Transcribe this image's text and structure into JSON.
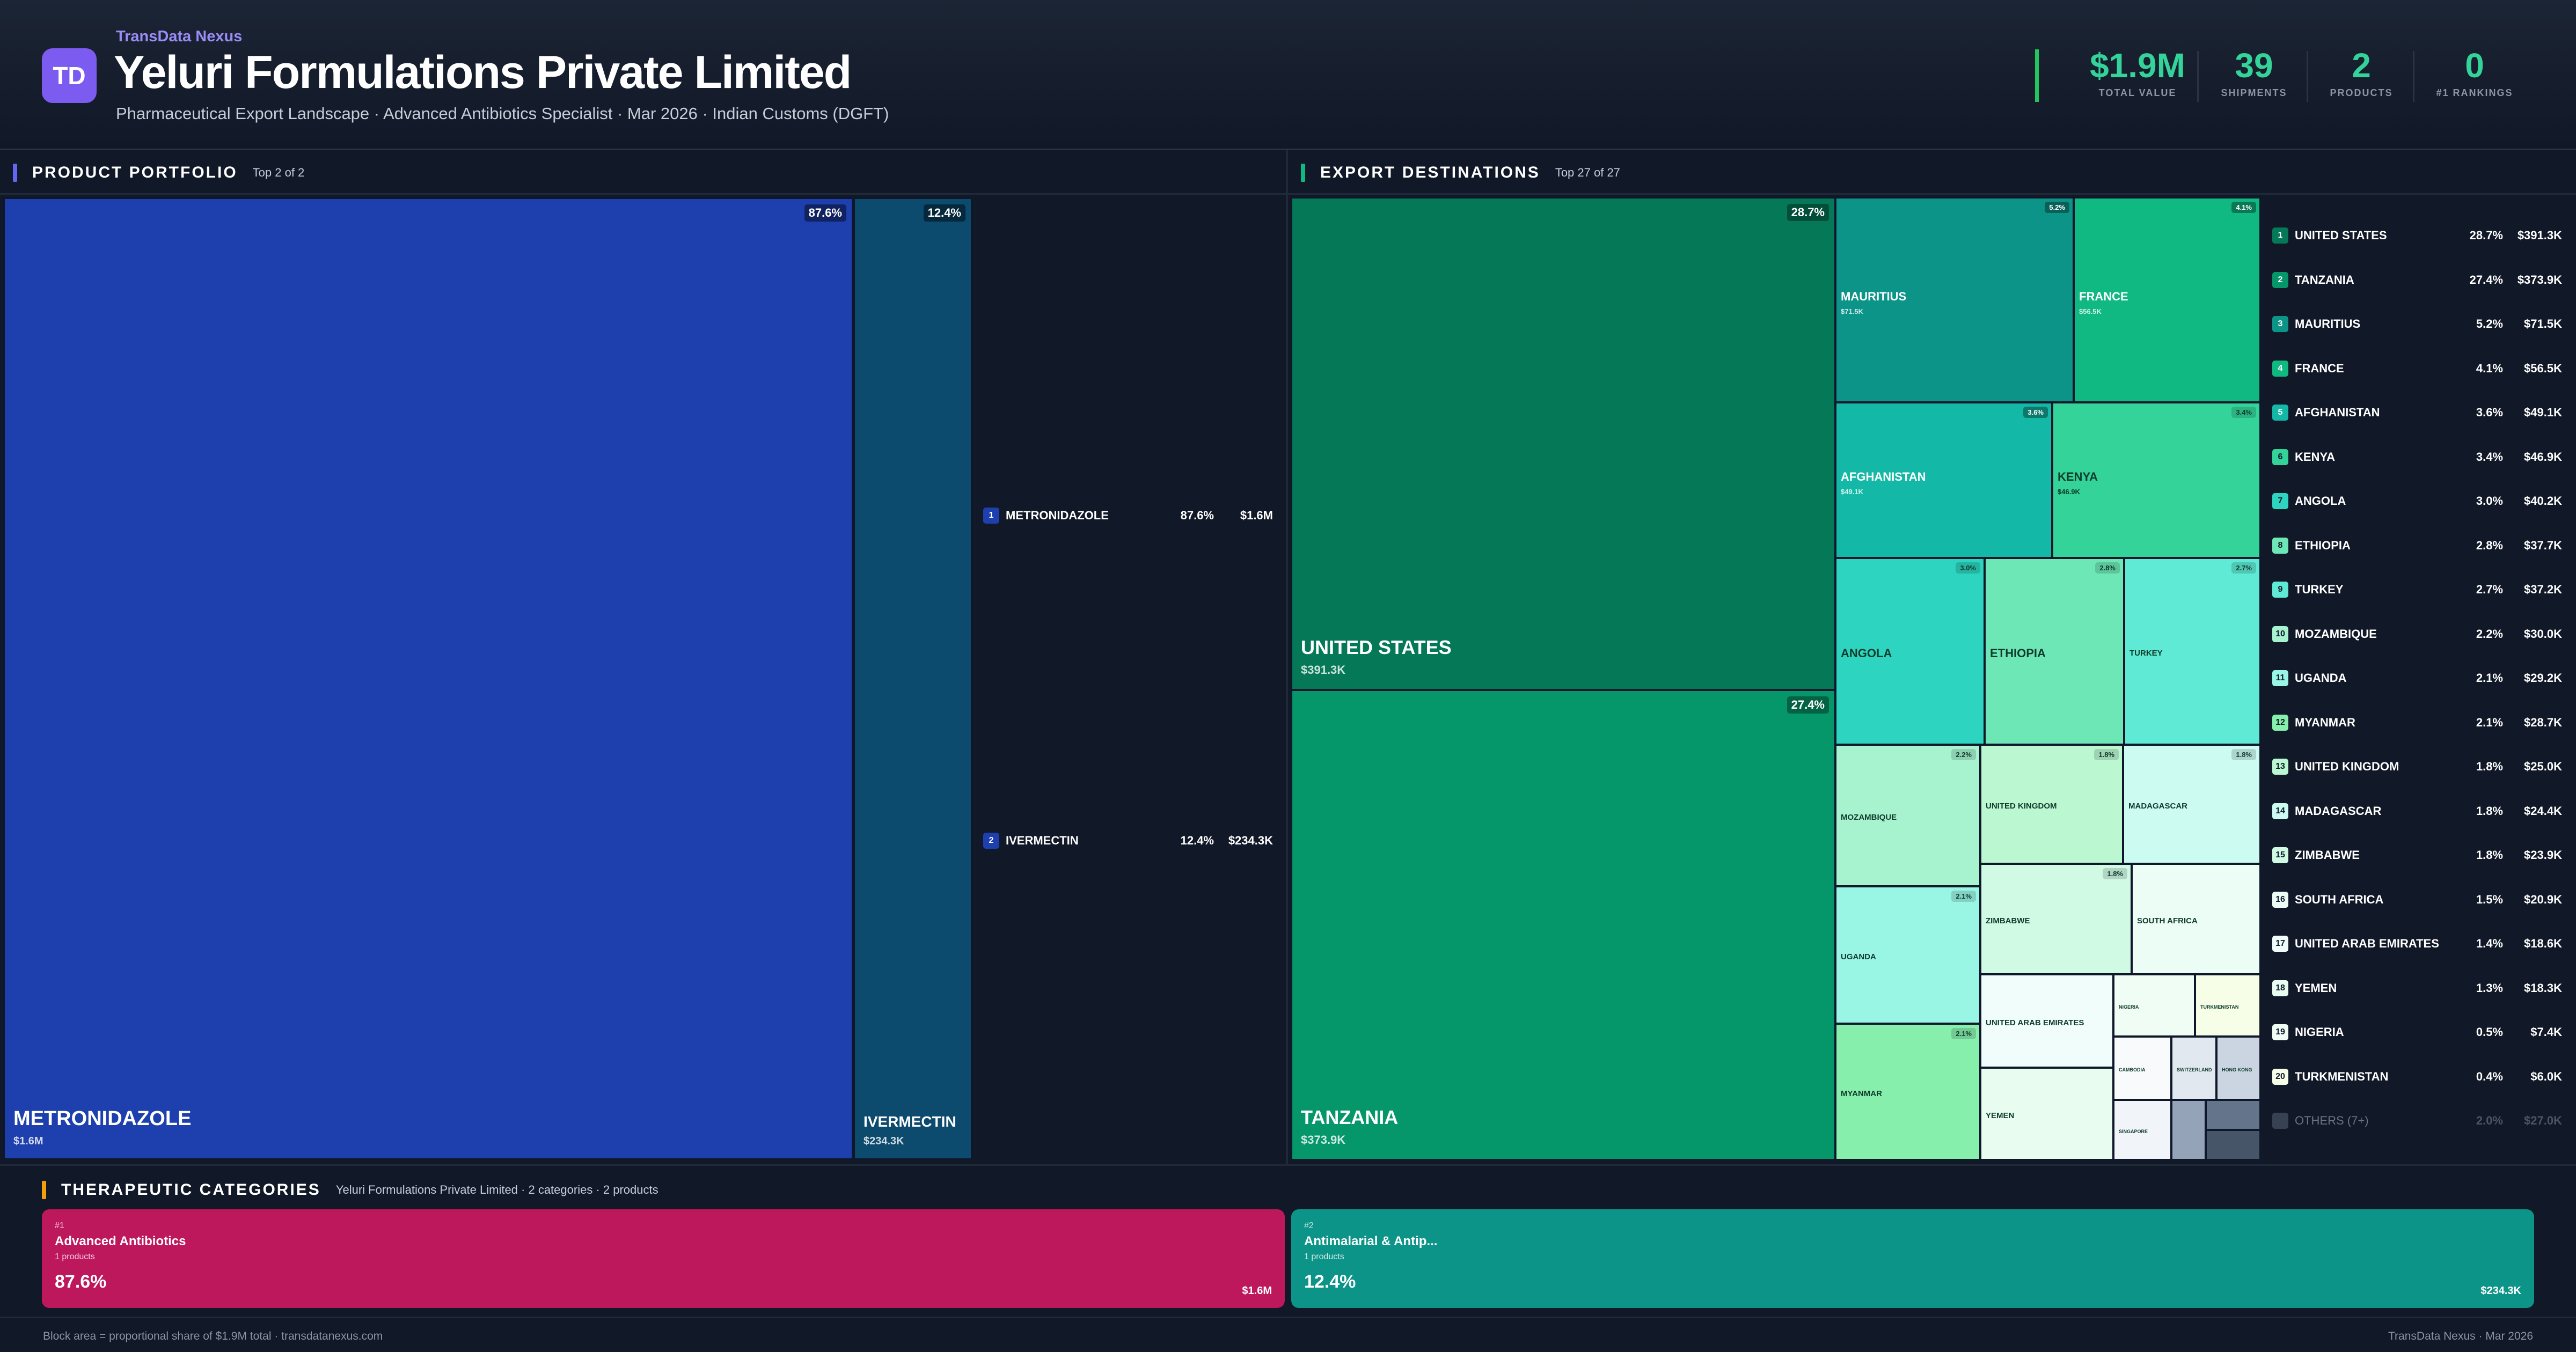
{
  "header": {
    "logo_text": "TD",
    "brand": "TransData Nexus",
    "title": "Yeluri Formulations Private Limited",
    "subtitle": "Pharmaceutical Export Landscape · Advanced Antibiotics Specialist · Mar 2026 · Indian Customs (DGFT)"
  },
  "kpis": [
    {
      "value": "$1.9M",
      "label": "TOTAL VALUE"
    },
    {
      "value": "39",
      "label": "SHIPMENTS"
    },
    {
      "value": "2",
      "label": "PRODUCTS"
    },
    {
      "value": "0",
      "label": "#1 RANKINGS"
    }
  ],
  "product_portfolio": {
    "title": "PRODUCT PORTFOLIO",
    "subtitle": "Top 2 of 2",
    "accent": "#6366f1",
    "blocks": [
      {
        "name": "METRONIDAZOLE",
        "value": "$1.6M",
        "pct": "87.6%",
        "color": "#1e40af"
      },
      {
        "name": "IVERMECTIN",
        "value": "$234.3K",
        "pct": "12.4%",
        "color": "#0c4a6e"
      }
    ],
    "list": [
      {
        "rank": "1",
        "name": "METRONIDAZOLE",
        "pct": "87.6%",
        "value": "$1.6M"
      },
      {
        "rank": "2",
        "name": "IVERMECTIN",
        "pct": "12.4%",
        "value": "$234.3K"
      }
    ]
  },
  "export_destinations": {
    "title": "EXPORT DESTINATIONS",
    "subtitle": "Top 27 of 27",
    "accent": "#10b981",
    "blocks": [
      {
        "name": "UNITED STATES",
        "value": "$391.3K",
        "pct": "28.7%",
        "color": "#047857"
      },
      {
        "name": "TANZANIA",
        "value": "$373.9K",
        "pct": "27.4%",
        "color": "#059669"
      },
      {
        "name": "MAURITIUS",
        "value": "$71.5K",
        "pct": "5.2%",
        "color": "#0d9488"
      },
      {
        "name": "FRANCE",
        "value": "$56.5K",
        "pct": "4.1%",
        "color": "#10b981"
      },
      {
        "name": "AFGHANISTAN",
        "value": "$49.1K",
        "pct": "3.6%",
        "color": "#14b8a6"
      },
      {
        "name": "KENYA",
        "value": "$46.9K",
        "pct": "3.4%",
        "color": "#34d399"
      },
      {
        "name": "ANGOLA",
        "value": "",
        "pct": "3.0%",
        "color": "#2dd4bf"
      },
      {
        "name": "ETHIOPIA",
        "value": "",
        "pct": "2.8%",
        "color": "#6ee7b7"
      },
      {
        "name": "TURKEY",
        "value": "",
        "pct": "2.7%",
        "color": "#5eead4"
      },
      {
        "name": "MOZAMBIQUE",
        "value": "",
        "pct": "2.2%",
        "color": "#a7f3d0"
      },
      {
        "name": "UNITED KINGDOM",
        "value": "",
        "pct": "1.8%",
        "color": "#bbf7d0"
      },
      {
        "name": "MADAGASCAR",
        "value": "",
        "pct": "1.8%",
        "color": "#ccfbf1"
      },
      {
        "name": "UGANDA",
        "value": "",
        "pct": "2.1%",
        "color": "#99f6e4"
      },
      {
        "name": "ZIMBABWE",
        "value": "",
        "pct": "1.8%",
        "color": "#d1fae5"
      },
      {
        "name": "SOUTH AFRICA",
        "value": "",
        "pct": "",
        "color": "#ecfdf5"
      },
      {
        "name": "MYANMAR",
        "value": "",
        "pct": "2.1%",
        "color": "#86efac"
      },
      {
        "name": "UNITED ARAB EMIRATES",
        "value": "",
        "pct": "",
        "color": "#f0fdfa"
      },
      {
        "name": "NIGERIA",
        "value": "",
        "pct": "",
        "color": "#f0fdf4"
      },
      {
        "name": "TURKMENISTAN",
        "value": "",
        "pct": "",
        "color": "#f7fee7"
      },
      {
        "name": "YEMEN",
        "value": "",
        "pct": "",
        "color": "#e8fdf0"
      },
      {
        "name": "CAMBODIA",
        "value": "",
        "pct": "",
        "color": "#f8fafc"
      },
      {
        "name": "SWITZERLAND",
        "value": "",
        "pct": "",
        "color": "#e2e8f0"
      },
      {
        "name": "HONG KONG",
        "value": "",
        "pct": "",
        "color": "#cbd5e1"
      },
      {
        "name": "SINGAPORE",
        "value": "",
        "pct": "",
        "color": "#f1f5f9"
      },
      {
        "name": "",
        "value": "",
        "pct": "",
        "color": "#94a3b8"
      },
      {
        "name": "",
        "value": "",
        "pct": "",
        "color": "#64748b"
      },
      {
        "name": "",
        "value": "",
        "pct": "",
        "color": "#475569"
      }
    ],
    "list": [
      {
        "rank": "1",
        "name": "UNITED STATES",
        "pct": "28.7%",
        "value": "$391.3K",
        "color": "#047857"
      },
      {
        "rank": "2",
        "name": "TANZANIA",
        "pct": "27.4%",
        "value": "$373.9K",
        "color": "#059669"
      },
      {
        "rank": "3",
        "name": "MAURITIUS",
        "pct": "5.2%",
        "value": "$71.5K",
        "color": "#0d9488"
      },
      {
        "rank": "4",
        "name": "FRANCE",
        "pct": "4.1%",
        "value": "$56.5K",
        "color": "#10b981"
      },
      {
        "rank": "5",
        "name": "AFGHANISTAN",
        "pct": "3.6%",
        "value": "$49.1K",
        "color": "#14b8a6"
      },
      {
        "rank": "6",
        "name": "KENYA",
        "pct": "3.4%",
        "value": "$46.9K",
        "color": "#34d399"
      },
      {
        "rank": "7",
        "name": "ANGOLA",
        "pct": "3.0%",
        "value": "$40.2K",
        "color": "#2dd4bf"
      },
      {
        "rank": "8",
        "name": "ETHIOPIA",
        "pct": "2.8%",
        "value": "$37.7K",
        "color": "#6ee7b7"
      },
      {
        "rank": "9",
        "name": "TURKEY",
        "pct": "2.7%",
        "value": "$37.2K",
        "color": "#5eead4"
      },
      {
        "rank": "10",
        "name": "MOZAMBIQUE",
        "pct": "2.2%",
        "value": "$30.0K",
        "color": "#a7f3d0"
      },
      {
        "rank": "11",
        "name": "UGANDA",
        "pct": "2.1%",
        "value": "$29.2K",
        "color": "#99f6e4"
      },
      {
        "rank": "12",
        "name": "MYANMAR",
        "pct": "2.1%",
        "value": "$28.7K",
        "color": "#86efac"
      },
      {
        "rank": "13",
        "name": "UNITED KINGDOM",
        "pct": "1.8%",
        "value": "$25.0K",
        "color": "#bbf7d0"
      },
      {
        "rank": "14",
        "name": "MADAGASCAR",
        "pct": "1.8%",
        "value": "$24.4K",
        "color": "#ccfbf1"
      },
      {
        "rank": "15",
        "name": "ZIMBABWE",
        "pct": "1.8%",
        "value": "$23.9K",
        "color": "#d1fae5"
      },
      {
        "rank": "16",
        "name": "SOUTH AFRICA",
        "pct": "1.5%",
        "value": "$20.9K",
        "color": "#ecfdf5"
      },
      {
        "rank": "17",
        "name": "UNITED ARAB EMIRATES",
        "pct": "1.4%",
        "value": "$18.6K",
        "color": "#f0fdfa"
      },
      {
        "rank": "18",
        "name": "YEMEN",
        "pct": "1.3%",
        "value": "$18.3K",
        "color": "#e8fdf0"
      },
      {
        "rank": "19",
        "name": "NIGERIA",
        "pct": "0.5%",
        "value": "$7.4K",
        "color": "#f0fdf4"
      },
      {
        "rank": "20",
        "name": "TURKMENISTAN",
        "pct": "0.4%",
        "value": "$6.0K",
        "color": "#f7fee7"
      },
      {
        "rank": "",
        "name": "OTHERS (7+)",
        "pct": "2.0%",
        "value": "$27.0K",
        "color": "#374151"
      }
    ]
  },
  "therapeutic": {
    "title": "THERAPEUTIC CATEGORIES",
    "subtitle": "Yeluri Formulations Private Limited · 2 categories · 2 products",
    "accent": "#f59e0b",
    "categories": [
      {
        "rank": "#1",
        "name": "Advanced Antibiotics",
        "products": "1 products",
        "pct": "87.6%",
        "value": "$1.6M",
        "color": "#be185d"
      },
      {
        "rank": "#2",
        "name": "Antimalarial & Antip...",
        "products": "1 products",
        "pct": "12.4%",
        "value": "$234.3K",
        "color": "#0d9488"
      }
    ]
  },
  "footer": {
    "left": "Block area = proportional share of $1.9M total · transdatanexus.com",
    "right": "TransData Nexus · Mar 2026"
  }
}
